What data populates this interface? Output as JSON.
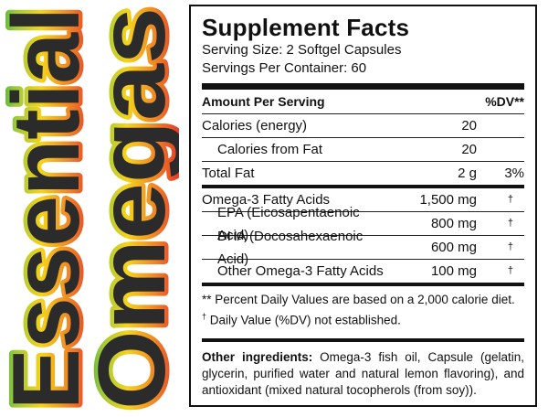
{
  "brand": {
    "line1": "Essential",
    "line2": "Omegas",
    "gradient_colors": [
      "#e3262b",
      "#f08a24",
      "#f5d31c",
      "#9bc93b",
      "#2aa84a"
    ]
  },
  "facts": {
    "title": "Supplement Facts",
    "serving_size": "Serving Size: 2 Softgel Capsules",
    "servings_per_container": "Servings Per Container: 60",
    "header_amount": "Amount Per Serving",
    "header_dv": "%DV**",
    "rows": [
      {
        "name": "Calories (energy)",
        "amount": "20",
        "dv": ""
      },
      {
        "name": "Calories from Fat",
        "amount": "20",
        "dv": ""
      },
      {
        "name": "Total Fat",
        "amount": "2 g",
        "dv": "3%"
      },
      {
        "name": "Omega-3 Fatty Acids",
        "amount": "1,500 mg",
        "dv": "†"
      },
      {
        "name": "EPA (Eicosapentaenoic Acid)",
        "amount": "800 mg",
        "dv": "†"
      },
      {
        "name": "DHA (Docosahexaenoic Acid)",
        "amount": "600 mg",
        "dv": "†"
      },
      {
        "name": "Other Omega-3 Fatty Acids",
        "amount": "100 mg",
        "dv": "†"
      }
    ],
    "note1": "** Percent Daily Values are based on a 2,000 calorie diet.",
    "note2_mark": "†",
    "note2": " Daily Value (%DV) not established.",
    "ingredients_label": "Other ingredients:",
    "ingredients_text": " Omega-3 fish oil, Capsule (gelatin, glycerin, purified water and natural lemon flavoring), and antioxidant (mixed natural tocopherols (from soy))."
  }
}
